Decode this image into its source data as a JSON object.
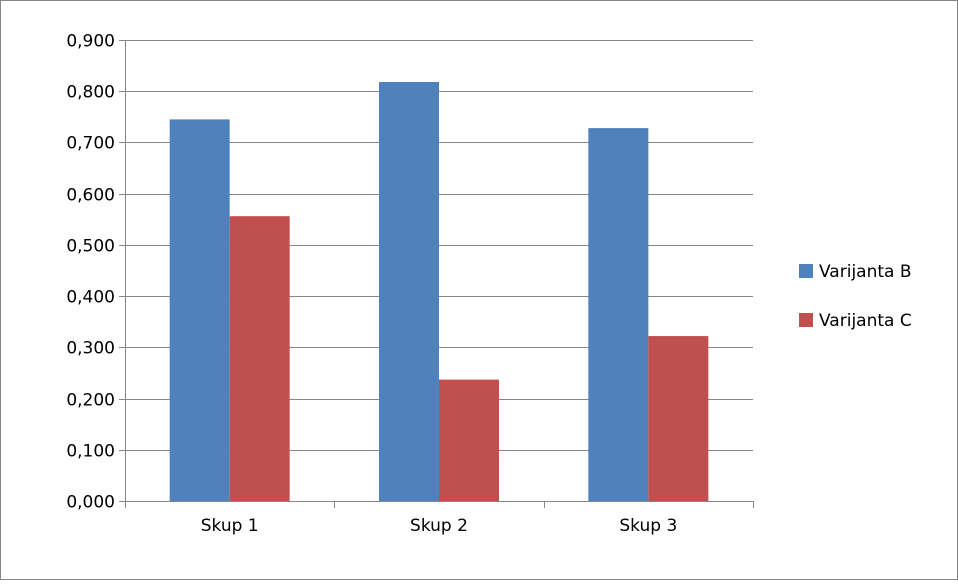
{
  "chart_data": {
    "type": "bar",
    "categories": [
      "Skup 1",
      "Skup 2",
      "Skup 3"
    ],
    "series": [
      {
        "name": "Varijanta B",
        "values": [
          0.745,
          0.818,
          0.728
        ],
        "color": "#4F81BD"
      },
      {
        "name": "Varijanta C",
        "values": [
          0.556,
          0.237,
          0.322
        ],
        "color": "#C0504D"
      }
    ],
    "ylim": [
      0,
      0.9
    ],
    "yticks": [
      0,
      0.1,
      0.2,
      0.3,
      0.4,
      0.5,
      0.6,
      0.7,
      0.8,
      0.9
    ],
    "ytick_labels": [
      "0,000",
      "0,100",
      "0,200",
      "0,300",
      "0,400",
      "0,500",
      "0,600",
      "0,700",
      "0,800",
      "0,900"
    ],
    "grid": true,
    "legend_position": "right",
    "axis_color": "#868686",
    "grid_color": "#868686"
  }
}
